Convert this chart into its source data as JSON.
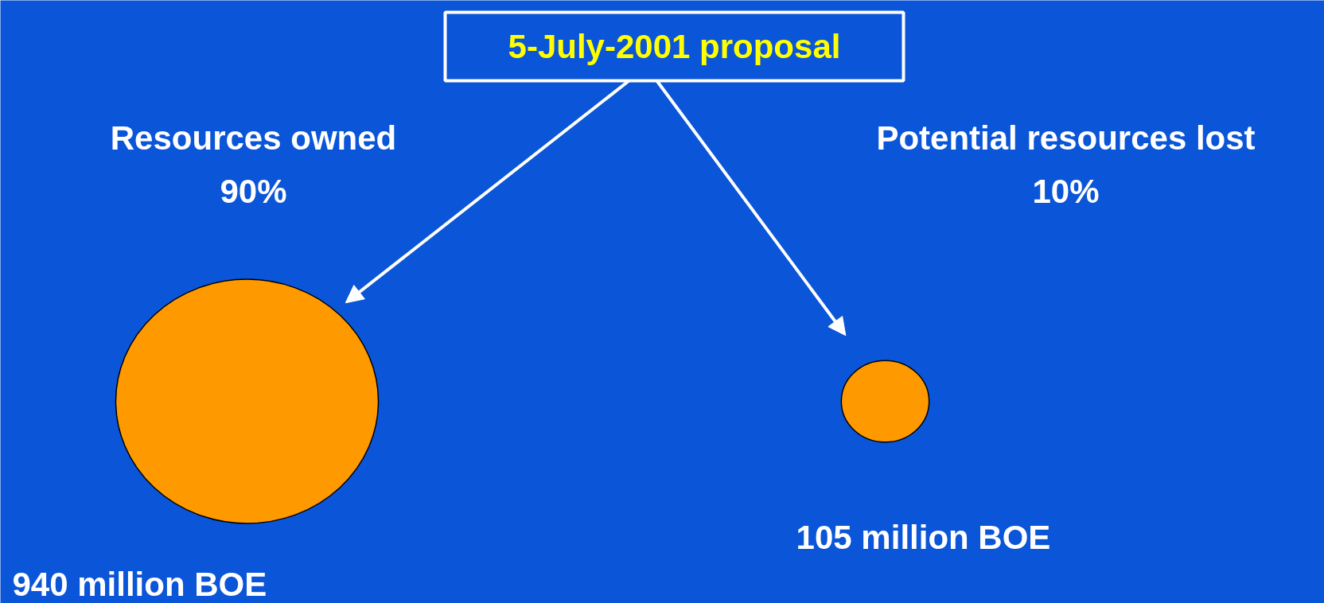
{
  "chart_data": {
    "type": "other",
    "title": "5-July-2001 proposal",
    "categories": [
      "Resources owned\n90%",
      "Potential resources lost\n10%"
    ],
    "values": [
      940,
      105
    ],
    "value_labels": [
      "940 million BOE",
      "105 million BOE"
    ],
    "color": "#ff9900"
  }
}
